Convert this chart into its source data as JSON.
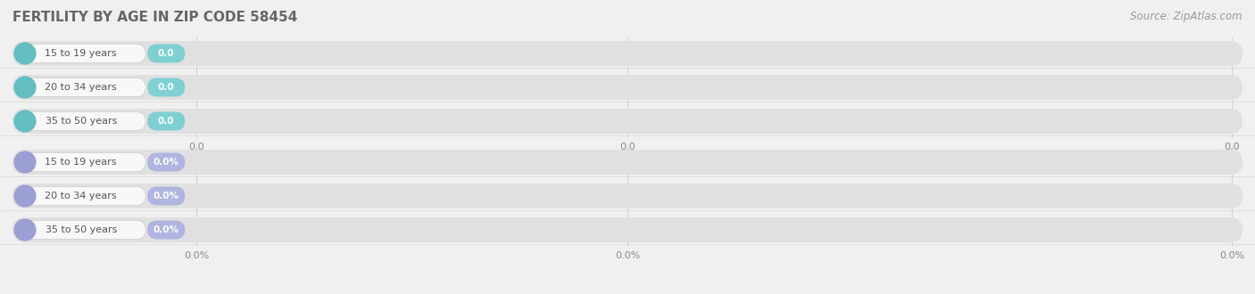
{
  "title": "FERTILITY BY AGE IN ZIP CODE 58454",
  "source": "Source: ZipAtlas.com",
  "background_color": "#f0f0f0",
  "fig_bg_color": "#f0f0f0",
  "top_group": {
    "categories": [
      "15 to 19 years",
      "20 to 34 years",
      "35 to 50 years"
    ],
    "values": [
      0.0,
      0.0,
      0.0
    ],
    "value_labels": [
      "0.0",
      "0.0",
      "0.0"
    ],
    "track_color": "#e0e0e0",
    "circle_color": "#62bec1",
    "label_pill_color": "#f8f8f8",
    "badge_color": "#7ed0d2",
    "label_color": "#555555",
    "axis_tick_labels": [
      "0.0",
      "0.0",
      "0.0"
    ]
  },
  "bottom_group": {
    "categories": [
      "15 to 19 years",
      "20 to 34 years",
      "35 to 50 years"
    ],
    "values": [
      0.0,
      0.0,
      0.0
    ],
    "value_labels": [
      "0.0%",
      "0.0%",
      "0.0%"
    ],
    "track_color": "#e0e0e0",
    "circle_color": "#9b9fd4",
    "label_pill_color": "#f8f8f8",
    "badge_color": "#b0b4e0",
    "label_color": "#555555",
    "axis_tick_labels": [
      "0.0%",
      "0.0%",
      "0.0%"
    ]
  },
  "figsize": [
    14.06,
    3.3
  ],
  "dpi": 100,
  "title_fontsize": 11,
  "title_color": "#666666",
  "source_fontsize": 8.5,
  "source_color": "#999999"
}
